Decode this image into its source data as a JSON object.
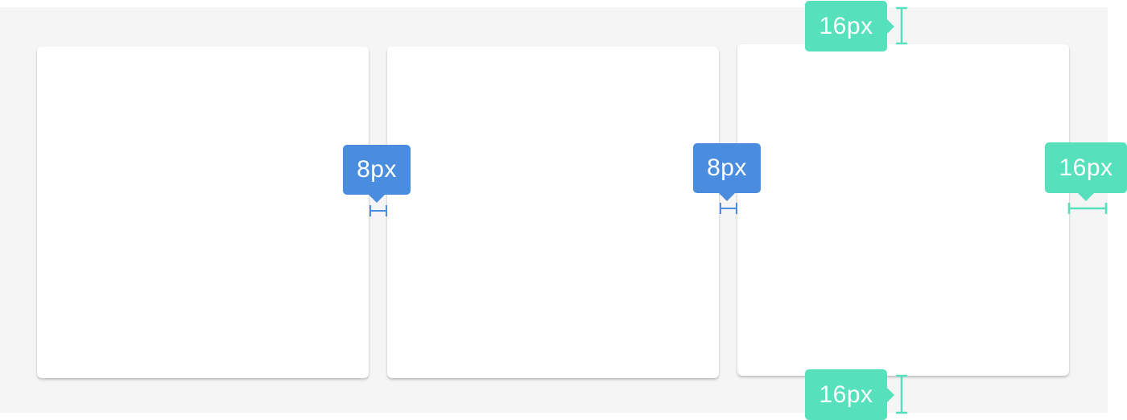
{
  "cards": [
    {
      "id": "card-1"
    },
    {
      "id": "card-2"
    },
    {
      "id": "card-3"
    }
  ],
  "annotations": {
    "gutter_1": "8px",
    "gutter_2": "8px",
    "top_margin": "16px",
    "right_margin": "16px",
    "bottom_margin": "16px"
  },
  "colors": {
    "canvas": "#f6f5f5",
    "card": "#ffffff",
    "gutter_tag": "#4a8ddf",
    "margin_tag": "#57e0bc"
  },
  "icons": [
    "horizontal-measure-icon",
    "vertical-measure-icon"
  ]
}
